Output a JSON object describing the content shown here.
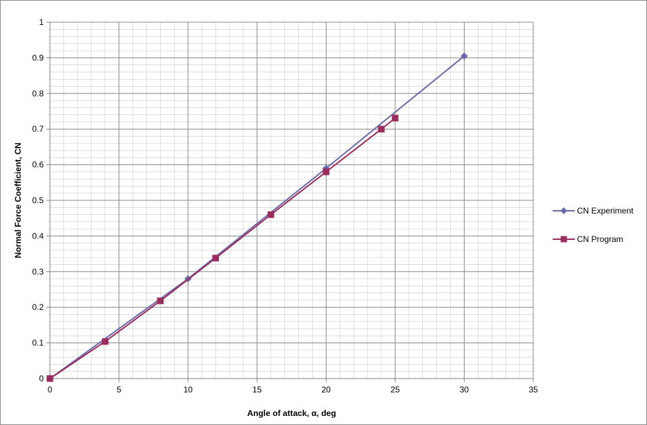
{
  "chart_data": {
    "type": "line",
    "title": "",
    "xlabel": "Angle of attack, α, deg",
    "ylabel": "Normal Force Coefficient, CN",
    "xlim": [
      0,
      35
    ],
    "ylim": [
      0,
      1
    ],
    "x_ticks": [
      0,
      5,
      10,
      15,
      20,
      25,
      30,
      35
    ],
    "y_ticks": [
      0,
      0.1,
      0.2,
      0.3,
      0.4,
      0.5,
      0.6,
      0.7,
      0.8,
      0.9,
      1
    ],
    "x_tick_labels": [
      "0",
      "5",
      "10",
      "15",
      "20",
      "25",
      "30",
      "35"
    ],
    "y_tick_labels": [
      "0",
      "0.1",
      "0.2",
      "0.3",
      "0.4",
      "0.5",
      "0.6",
      "0.7",
      "0.8",
      "0.9",
      "1"
    ],
    "grid": true,
    "legend_position": "right",
    "series": [
      {
        "name": "CN Experiment",
        "color": "#6a6aa8",
        "marker": "diamond",
        "points": [
          [
            0,
            0
          ],
          [
            10,
            0.28
          ],
          [
            20,
            0.59
          ],
          [
            30,
            0.905
          ]
        ]
      },
      {
        "name": "CN Program",
        "color": "#9b2c5e",
        "marker": "square",
        "points": [
          [
            0,
            0
          ],
          [
            4,
            0.104
          ],
          [
            8,
            0.218
          ],
          [
            12,
            0.338
          ],
          [
            16,
            0.46
          ],
          [
            20,
            0.58
          ],
          [
            24,
            0.7
          ],
          [
            25,
            0.731
          ]
        ]
      }
    ]
  }
}
